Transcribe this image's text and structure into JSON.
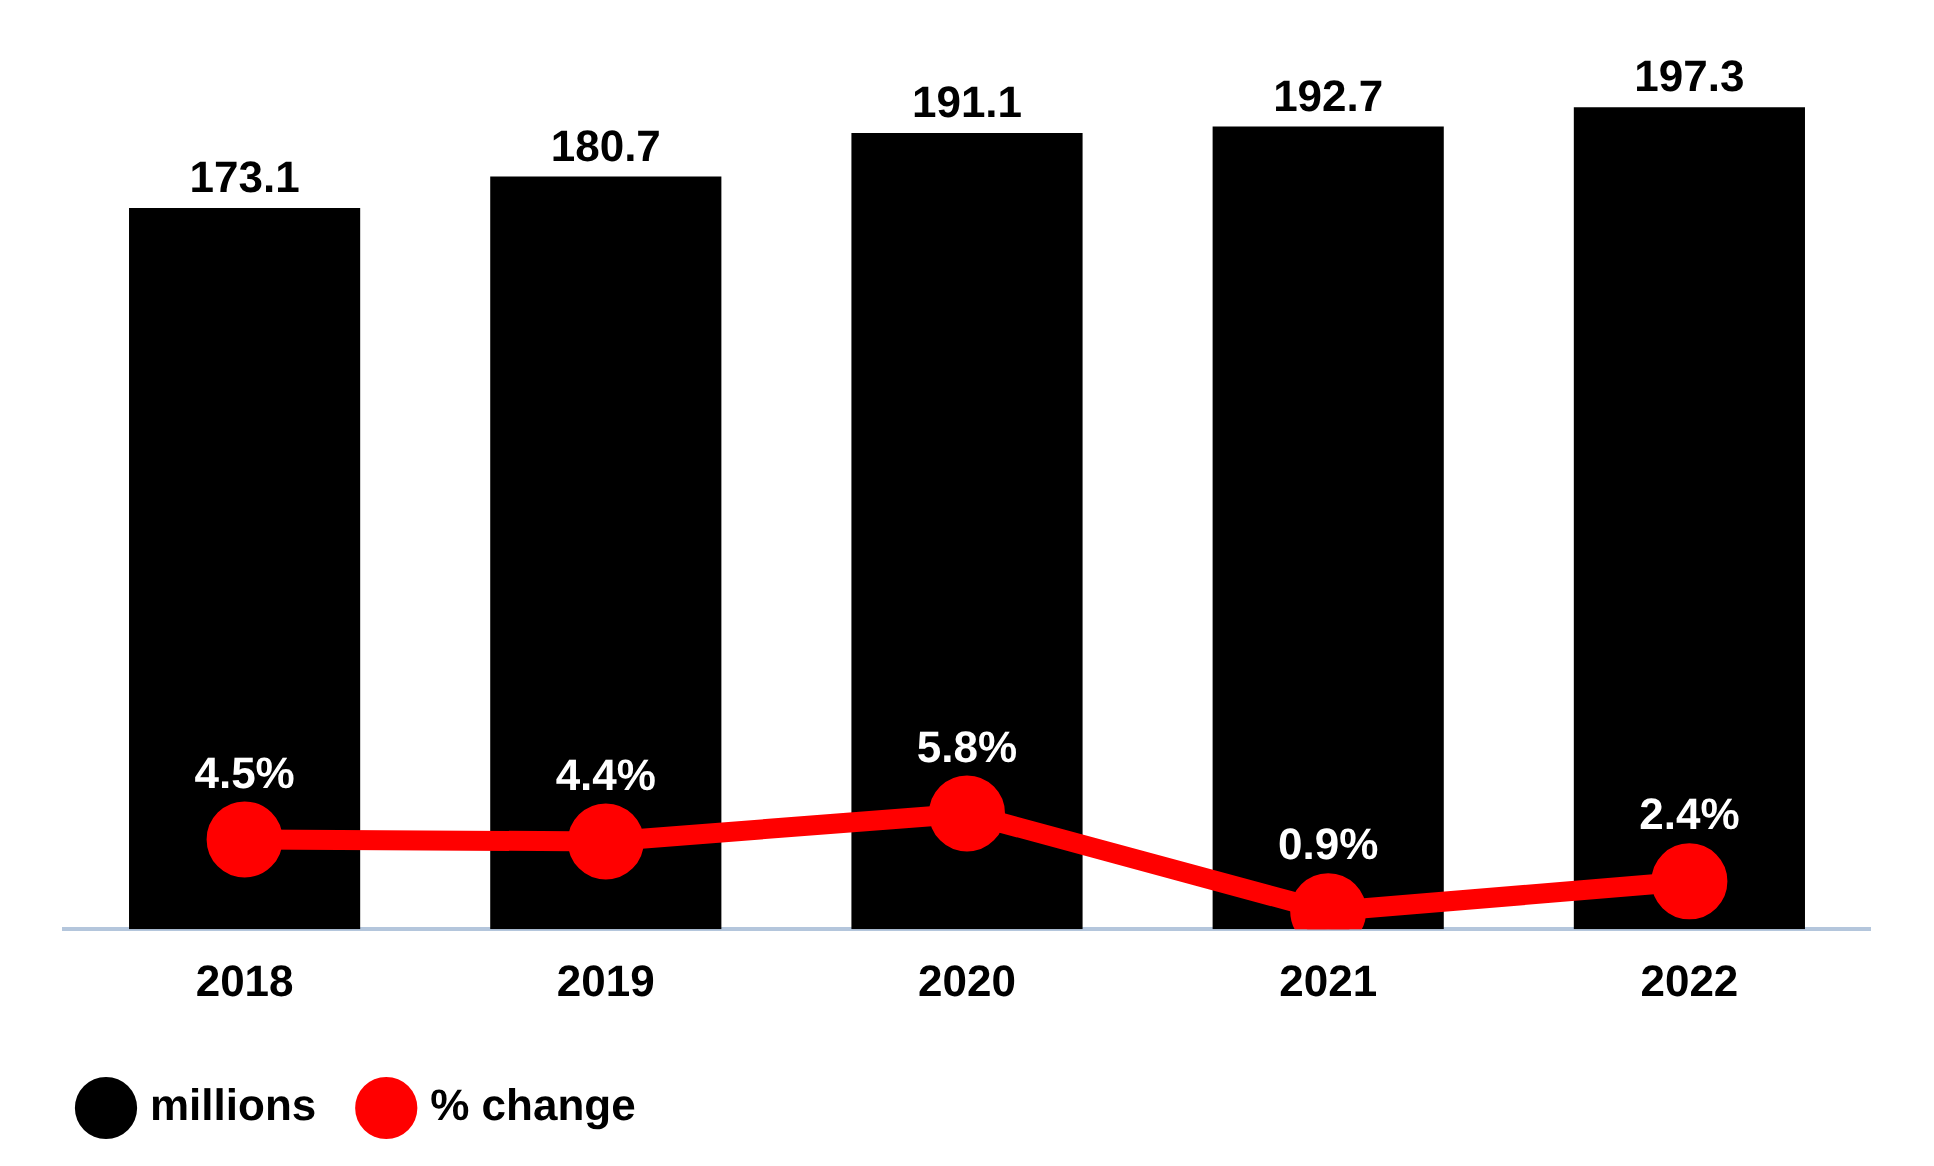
{
  "chart_data": {
    "type": "bar",
    "categories": [
      "2018",
      "2019",
      "2020",
      "2021",
      "2022"
    ],
    "series": [
      {
        "name": "millions",
        "color": "#000000",
        "values": [
          173.1,
          180.7,
          191.1,
          192.7,
          197.3
        ],
        "value_labels": [
          "173.1",
          "180.7",
          "191.1",
          "192.7",
          "197.3"
        ]
      },
      {
        "name": "% change",
        "type": "line",
        "axis": "y2",
        "color": "#ff0000",
        "marker": "circle",
        "values": [
          4.5,
          4.4,
          5.8,
          0.9,
          2.4
        ],
        "value_labels": [
          "4.5%",
          "4.4%",
          "5.8%",
          "0.9%",
          "2.4%"
        ]
      }
    ],
    "tick_labels": "x",
    "grid": false,
    "legend": "bottom left"
  }
}
